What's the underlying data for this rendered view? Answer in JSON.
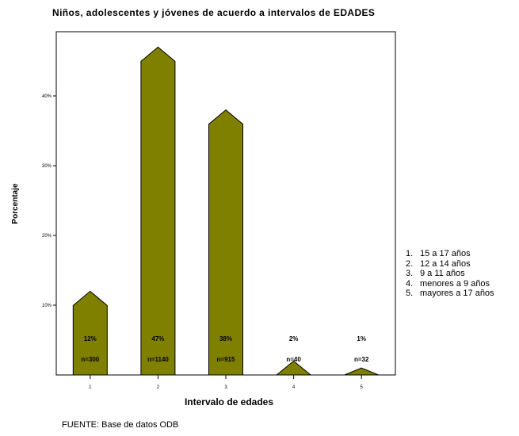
{
  "chart_data": {
    "type": "bar",
    "title": "Niños, adolescentes y jóvenes de acuerdo a intervalos de EDADES",
    "xlabel": "Intervalo de edades",
    "ylabel": "Porcentaje",
    "categories": [
      "1",
      "2",
      "3",
      "4",
      "5"
    ],
    "values": [
      12,
      47,
      38,
      2,
      1
    ],
    "percent_labels": [
      "12%",
      "47%",
      "38%",
      "2%",
      "1%"
    ],
    "n_labels": [
      "n=300",
      "n=1140",
      "n=915",
      "n=40",
      "n=32"
    ],
    "yticks": [
      10,
      20,
      30,
      40
    ],
    "ytick_labels": [
      "10%",
      "20%",
      "30%",
      "40%"
    ],
    "ylim": [
      0,
      50
    ],
    "grid": false,
    "bar_color": "#808000",
    "legend_position": "right"
  },
  "legend": {
    "items": [
      {
        "num": "1.",
        "label": "15 a 17 años"
      },
      {
        "num": "2.",
        "label": "12 a 14 años"
      },
      {
        "num": "3.",
        "label": "9 a 11 años"
      },
      {
        "num": "4.",
        "label": "menores a 9 años"
      },
      {
        "num": "5.",
        "label": "mayores a 17 años"
      }
    ]
  },
  "source": "FUENTE: Base de datos ODB"
}
